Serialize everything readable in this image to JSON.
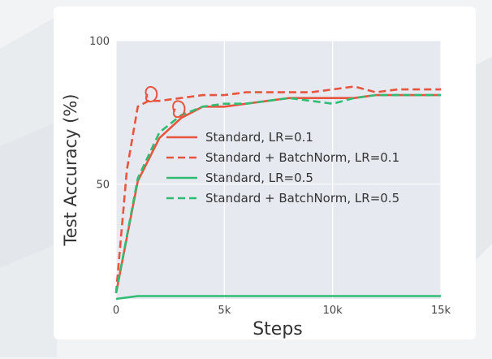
{
  "chart_data": {
    "type": "line",
    "xlabel": "Steps",
    "ylabel": "Test Accuracy (%)",
    "xlim": [
      0,
      15000
    ],
    "ylim": [
      10,
      100
    ],
    "xticks": [
      0,
      5000,
      10000,
      15000
    ],
    "xtick_labels": [
      "0",
      "5k",
      "10k",
      "15k"
    ],
    "yticks": [
      50,
      100
    ],
    "ytick_labels": [
      "50",
      "100"
    ],
    "grid": true,
    "legend_position": "center",
    "series": [
      {
        "name": "Standard, LR=0.1",
        "color": "#e8553e",
        "dash": "solid",
        "x": [
          0,
          1000,
          2000,
          3000,
          4000,
          5000,
          6000,
          7000,
          8000,
          9000,
          10000,
          11000,
          12000,
          13000,
          14000,
          15000
        ],
        "y": [
          12,
          51,
          66,
          73,
          77,
          77,
          78,
          79,
          80,
          80,
          80,
          80,
          81,
          81,
          81,
          81
        ]
      },
      {
        "name": "Standard + BatchNorm, LR=0.1",
        "color": "#e8553e",
        "dash": "dashed",
        "x": [
          0,
          500,
          1000,
          1500,
          2000,
          3000,
          4000,
          5000,
          6000,
          7000,
          8000,
          9000,
          10000,
          11000,
          12000,
          13000,
          14000,
          15000
        ],
        "y": [
          12,
          55,
          77,
          79,
          79,
          80,
          81,
          81,
          82,
          82,
          82,
          82,
          83,
          84,
          82,
          83,
          83,
          83
        ]
      },
      {
        "name": "Standard, LR=0.5",
        "color": "#2ebd72",
        "dash": "solid",
        "x": [
          0,
          1000,
          2000,
          4000,
          6000,
          8000,
          10000,
          12000,
          14000,
          15000
        ],
        "y": [
          10,
          11,
          11,
          11,
          11,
          11,
          11,
          11,
          11,
          11
        ]
      },
      {
        "name": "Standard + BatchNorm, LR=0.5",
        "color": "#2ebd72",
        "dash": "dashed",
        "x": [
          0,
          1000,
          2000,
          3000,
          4000,
          5000,
          6000,
          7000,
          8000,
          9000,
          10000,
          11000,
          12000,
          13000,
          14000,
          15000
        ],
        "y": [
          12,
          52,
          68,
          74,
          77,
          78,
          78,
          79,
          80,
          79,
          78,
          80,
          81,
          81,
          81,
          81
        ]
      }
    ]
  }
}
